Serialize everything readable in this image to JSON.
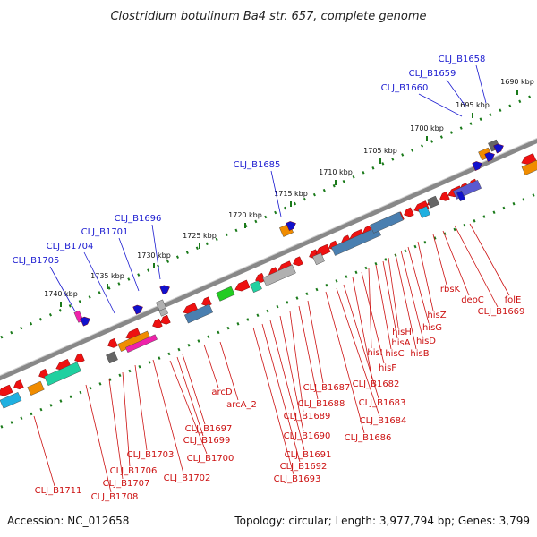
{
  "title": "Clostridium botulinum Ba4 str. 657, complete genome",
  "footer": {
    "accession": "Accession: NC_012658",
    "summary": "Topology: circular; Length: 3,977,794 bp; Genes: 3,799"
  },
  "kbp_labels": [
    "1690 kbp",
    "1695 kbp",
    "1700 kbp",
    "1705 kbp",
    "1710 kbp",
    "1715 kbp",
    "1720 kbp",
    "1725 kbp",
    "1730 kbp",
    "1735 kbp",
    "1740 kbp"
  ],
  "upper_labels": [
    "CLJ_B1658",
    "CLJ_B1659",
    "CLJ_B1660",
    "CLJ_B1685",
    "CLJ_B1696",
    "CLJ_B1701",
    "CLJ_B1704",
    "CLJ_B1705"
  ],
  "lower_labels": [
    "folE",
    "CLJ_B1669",
    "deoC",
    "rbsK",
    "hisZ",
    "hisG",
    "hisD",
    "hisB",
    "hisH",
    "hisA",
    "hisC",
    "hisI",
    "hisF",
    "CLJ_B1682",
    "CLJ_B1683",
    "CLJ_B1684",
    "CLJ_B1686",
    "CLJ_B1687",
    "CLJ_B1688",
    "CLJ_B1689",
    "CLJ_B1690",
    "CLJ_B1691",
    "CLJ_B1692",
    "CLJ_B1693",
    "arcD",
    "arcA_2",
    "CLJ_B1697",
    "CLJ_B1699",
    "CLJ_B1700",
    "CLJ_B1702",
    "CLJ_B1703",
    "CLJ_B1706",
    "CLJ_B1707",
    "CLJ_B1708",
    "CLJ_B1711"
  ],
  "colors": {
    "backbone": "#888888",
    "cds": "#ee1111",
    "label_blue": "#1a1ad0",
    "label_red": "#cc1111",
    "tick_green": "#1a7a1a",
    "steel_blue": "#4a7fb0",
    "orange": "#f08c00",
    "teal": "#20d0a0",
    "magenta": "#ee22aa",
    "gray": "#b0b0b0",
    "dark_gray": "#666666",
    "cyan": "#20b0e0",
    "green": "#22cc22"
  }
}
